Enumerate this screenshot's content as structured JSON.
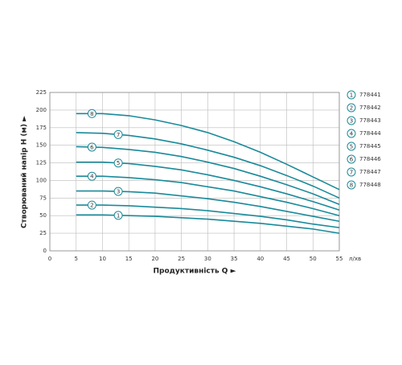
{
  "chart_data": {
    "type": "line",
    "y_label": "Створюваний напір H (м) ►",
    "x_label": "Продуктивність  Q  ►",
    "x_unit": "л/хв",
    "x": [
      5,
      10,
      15,
      20,
      25,
      30,
      35,
      40,
      45,
      50,
      55
    ],
    "xlim": [
      0,
      55
    ],
    "xticks": [
      0,
      5,
      10,
      15,
      20,
      25,
      30,
      35,
      40,
      45,
      50,
      55
    ],
    "ylim": [
      0,
      225
    ],
    "yticks": [
      0,
      25,
      50,
      75,
      100,
      125,
      150,
      175,
      200,
      225
    ],
    "grid": true,
    "series": [
      {
        "name": "778441",
        "label": "1",
        "color": "#1a8a9a",
        "values": [
          51,
          51,
          50,
          49,
          47,
          45,
          42,
          39,
          35,
          31,
          25
        ]
      },
      {
        "name": "778442",
        "label": "2",
        "color": "#1a8a9a",
        "values": [
          65,
          65,
          64,
          62,
          60,
          57,
          53,
          49,
          44,
          38,
          33
        ]
      },
      {
        "name": "778443",
        "label": "3",
        "color": "#1a8a9a",
        "values": [
          85,
          85,
          84,
          82,
          78,
          74,
          69,
          63,
          56,
          49,
          42
        ]
      },
      {
        "name": "778444",
        "label": "4",
        "color": "#1a8a9a",
        "values": [
          106,
          106,
          104,
          101,
          97,
          91,
          85,
          77,
          69,
          60,
          50
        ]
      },
      {
        "name": "778445",
        "label": "5",
        "color": "#1a8a9a",
        "values": [
          126,
          126,
          124,
          120,
          115,
          108,
          100,
          91,
          81,
          70,
          58
        ]
      },
      {
        "name": "778446",
        "label": "6",
        "color": "#1a8a9a",
        "values": [
          148,
          147,
          144,
          140,
          134,
          126,
          117,
          106,
          94,
          81,
          66
        ]
      },
      {
        "name": "778447",
        "label": "7",
        "color": "#1a8a9a",
        "values": [
          168,
          167,
          164,
          159,
          152,
          143,
          133,
          121,
          107,
          92,
          75
        ]
      },
      {
        "name": "778448",
        "label": "8",
        "color": "#1a8a9a",
        "values": [
          195,
          195,
          192,
          186,
          178,
          168,
          155,
          140,
          123,
          105,
          87
        ]
      }
    ]
  }
}
